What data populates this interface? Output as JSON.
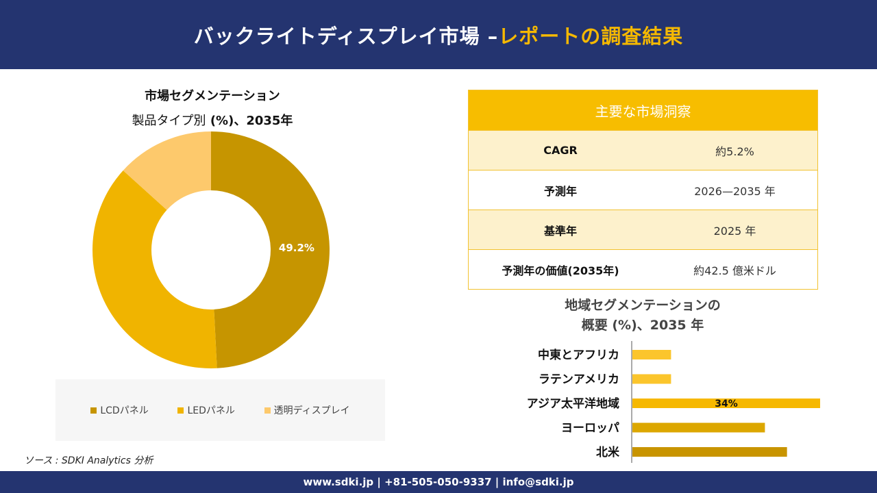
{
  "header": {
    "title_main": "バックライトディスプレイ市場 –",
    "title_accent": "レポートの調査結果"
  },
  "segmentation": {
    "title": "市場セグメンテーション",
    "subtitle_prefix": "製品タイプ別",
    "subtitle_bold": " (%)、2035年"
  },
  "chart_data": [
    {
      "type": "pie",
      "title": "市場セグメンテーション 製品タイプ別 (%)、2035年",
      "categories": [
        "LCDパネル",
        "LEDパネル",
        "透明ディスプレイ"
      ],
      "values": [
        49.2,
        37.5,
        13.3
      ],
      "colors": [
        "#c69500",
        "#f0b400",
        "#fdc96c"
      ],
      "data_labels": [
        "49.2%",
        "",
        ""
      ],
      "legend_position": "bottom"
    },
    {
      "type": "bar",
      "orientation": "horizontal",
      "title": "地域セグメンテーションの概要 (%)、2035 年",
      "categories": [
        "中東とアフリカ",
        "ラテンアメリカ",
        "アジア太平洋地域",
        "ヨーロッパ",
        "北米"
      ],
      "values": [
        7,
        7,
        34,
        24,
        28
      ],
      "colors": [
        "#fbc52c",
        "#fbc52c",
        "#f6b800",
        "#dca700",
        "#c89400"
      ],
      "data_labels": [
        "",
        "",
        "34%",
        "",
        ""
      ],
      "grid": false
    }
  ],
  "insights": {
    "title": "主要な市場洞察",
    "rows": [
      {
        "label": "CAGR",
        "value": "約5.2%"
      },
      {
        "label": "予測年",
        "value": "2026—2035 年"
      },
      {
        "label": "基準年",
        "value": "2025 年"
      },
      {
        "label": "予測年の価値(2035年)",
        "value": "約42.5 億米ドル"
      }
    ]
  },
  "region": {
    "title_line1": "地域セグメンテーションの",
    "title_line2": "概要 (%)、2035 年"
  },
  "source": "ソース : SDKI Analytics 分析",
  "footer": "www.sdki.jp | +81-505-050-9337 | info@sdki.jp"
}
